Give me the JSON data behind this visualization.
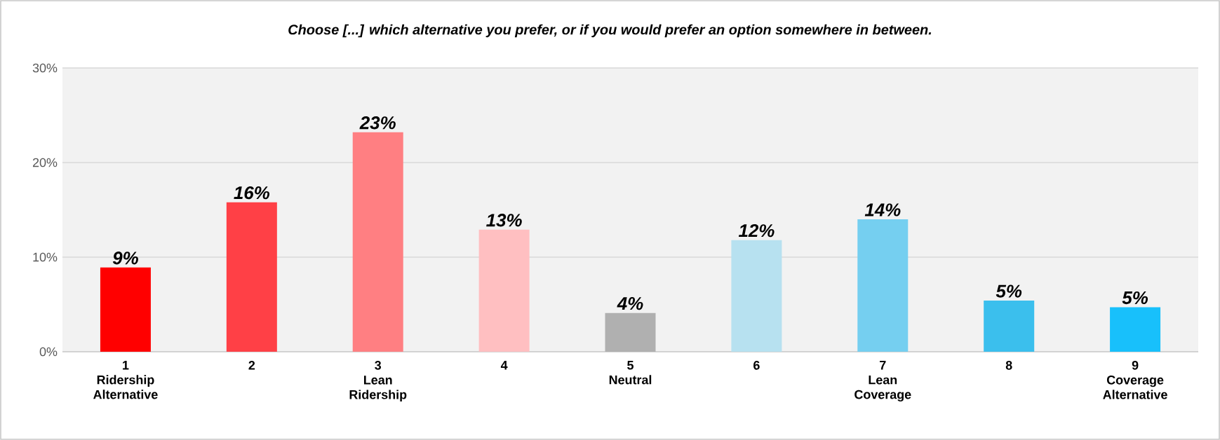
{
  "chart_data": {
    "type": "bar",
    "title": "Choose [...] which alternative you prefer, or if you would prefer an option somewhere in between.",
    "categories": [
      "1\nRidership\nAlternative",
      "2",
      "3\nLean\nRidership",
      "4",
      "5\nNeutral",
      "6",
      "7\nLean\nCoverage",
      "8",
      "9\nCoverage\nAlternative"
    ],
    "values": [
      8.9,
      15.8,
      23.2,
      12.9,
      4.1,
      11.8,
      14.0,
      5.4,
      4.7
    ],
    "colors": [
      "#ff0000",
      "#ff4046",
      "#ff7f82",
      "#ffbfc1",
      "#b0b0b0",
      "#b7e1f0",
      "#75cff0",
      "#3bbfed",
      "#18c0fb"
    ],
    "value_labels": [
      "9%",
      "16%",
      "23%",
      "13%",
      "4%",
      "12%",
      "14%",
      "5%",
      "5%"
    ],
    "ylim": [
      0,
      30
    ],
    "yticks": [
      {
        "value": 0,
        "label": "0%"
      },
      {
        "value": 10,
        "label": "10%"
      },
      {
        "value": 20,
        "label": "20%"
      },
      {
        "value": 30,
        "label": "30%"
      }
    ],
    "grid": "y"
  }
}
